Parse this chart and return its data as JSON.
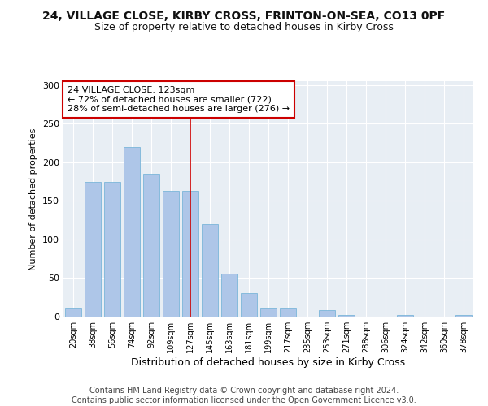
{
  "title1": "24, VILLAGE CLOSE, KIRBY CROSS, FRINTON-ON-SEA, CO13 0PF",
  "title2": "Size of property relative to detached houses in Kirby Cross",
  "xlabel": "Distribution of detached houses by size in Kirby Cross",
  "ylabel": "Number of detached properties",
  "categories": [
    "20sqm",
    "38sqm",
    "56sqm",
    "74sqm",
    "92sqm",
    "109sqm",
    "127sqm",
    "145sqm",
    "163sqm",
    "181sqm",
    "199sqm",
    "217sqm",
    "235sqm",
    "253sqm",
    "271sqm",
    "288sqm",
    "306sqm",
    "324sqm",
    "342sqm",
    "360sqm",
    "378sqm"
  ],
  "values": [
    12,
    175,
    175,
    220,
    185,
    163,
    163,
    120,
    56,
    30,
    12,
    12,
    0,
    8,
    2,
    0,
    0,
    2,
    0,
    0,
    2
  ],
  "bar_color": "#aec6e8",
  "bar_edge_color": "#6aaed6",
  "vline_index": 6,
  "vline_color": "#cc0000",
  "annotation_text": "24 VILLAGE CLOSE: 123sqm\n← 72% of detached houses are smaller (722)\n28% of semi-detached houses are larger (276) →",
  "annotation_box_color": "#ffffff",
  "annotation_box_edge_color": "#cc0000",
  "ylim": [
    0,
    305
  ],
  "yticks": [
    0,
    50,
    100,
    150,
    200,
    250,
    300
  ],
  "background_color": "#e8eef4",
  "grid_color": "#ffffff",
  "footer1": "Contains HM Land Registry data © Crown copyright and database right 2024.",
  "footer2": "Contains public sector information licensed under the Open Government Licence v3.0.",
  "title_fontsize": 10,
  "subtitle_fontsize": 9,
  "annotation_fontsize": 8,
  "footer_fontsize": 7,
  "ylabel_fontsize": 8,
  "xlabel_fontsize": 9
}
